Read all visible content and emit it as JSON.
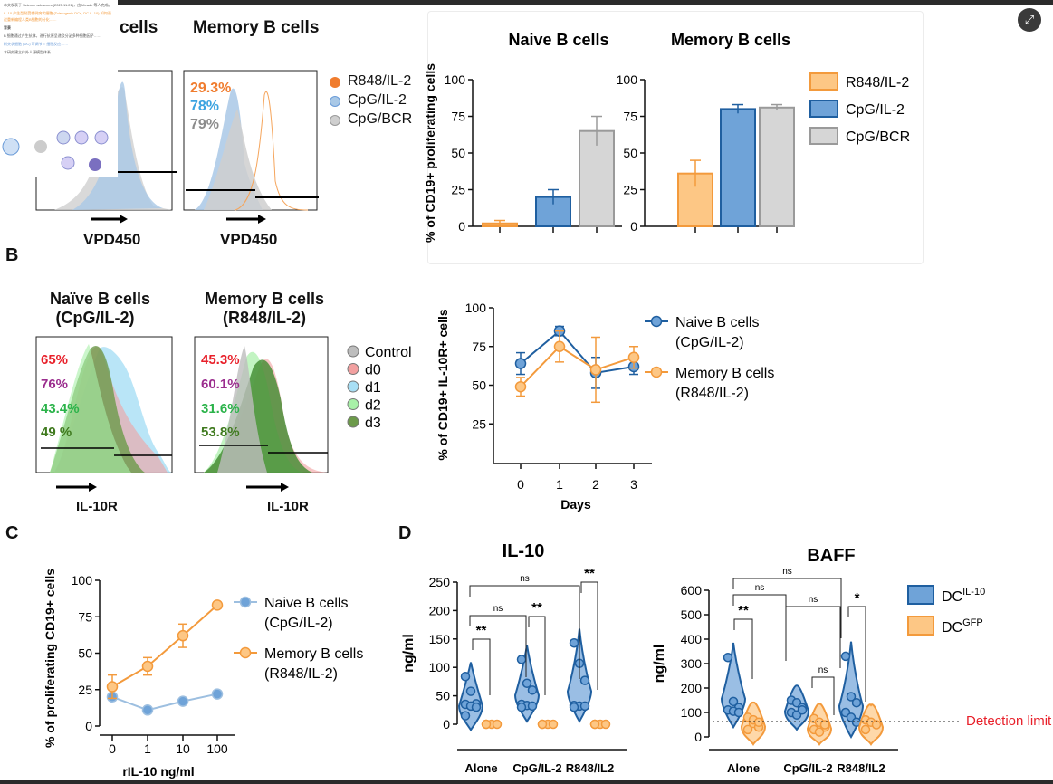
{
  "overlay": {
    "lines": [
      "本文发表于 Science advances (2025.11.21)，由 Meade 等人完成。",
      "IL-10 产生型耐受性树突状细胞 (Tolerogenic DCs, DC IL-10) 如何通过重新编程人类B细胞的分化……",
      "背景",
      "B 细胞通过产生抗体，进行抗原呈递及分泌多种细胞因子……",
      "树突状细胞 (DC) 可调节 T 细胞反应……",
      "本研究建立体外人源模型体系……"
    ]
  },
  "ui": {
    "expand_icon": "expand-icon"
  },
  "panelA": {
    "naive_title_partial": "cells",
    "memory_title": "Memory B cells",
    "percents": [
      {
        "text": "29.3%",
        "color": "#f07c2e"
      },
      {
        "text": "78%",
        "color": "#3ba3e0"
      },
      {
        "text": "79%",
        "color": "#8c8c8c"
      }
    ],
    "legend": [
      {
        "label": "R848/IL-2",
        "color": "#f07c2e"
      },
      {
        "label": "CpG/IL-2",
        "color": "#a9c8e6"
      },
      {
        "label": "CpG/BCR",
        "color": "#cfcfcf"
      }
    ],
    "xlabel": "VPD450"
  },
  "panelB": {
    "label": "B",
    "naive_title": [
      "Naïve B cells",
      "(CpG/IL-2)"
    ],
    "memory_title": [
      "Memory B cells",
      "(R848/IL-2)"
    ],
    "naive_percents": [
      {
        "text": "65%",
        "color": "#e8202a"
      },
      {
        "text": "76%",
        "color": "#9b2d8e"
      },
      {
        "text": "43.4%",
        "color": "#2bb34a"
      },
      {
        "text": "49 %",
        "color": "#3f7a1e"
      }
    ],
    "memory_percents": [
      {
        "text": "45.3%",
        "color": "#e8202a"
      },
      {
        "text": "60.1%",
        "color": "#9b2d8e"
      },
      {
        "text": "31.6%",
        "color": "#2bb34a"
      },
      {
        "text": "53.8%",
        "color": "#3f7a1e"
      }
    ],
    "legend": [
      {
        "label": "Control",
        "color": "#bdbdbd"
      },
      {
        "label": "d0",
        "color": "#f2a0a0"
      },
      {
        "label": "d1",
        "color": "#a8dff5"
      },
      {
        "label": "d2",
        "color": "#a8f0a8"
      },
      {
        "label": "d3",
        "color": "#6c9a4a"
      }
    ],
    "xlabel": "IL-10R"
  },
  "panelC": {
    "label": "C"
  },
  "panelD": {
    "label": "D",
    "detection_limit": "Detection limit"
  },
  "chart_data": [
    {
      "id": "naive-prolif",
      "type": "bar",
      "title": "Naive B cells",
      "ylabel": "% of CD19+ proliferating cells",
      "ylim": [
        0,
        100
      ],
      "yticks": [
        "0",
        "25",
        "50",
        "75",
        "100"
      ],
      "categories": [
        "R848/IL-2",
        "CpG/IL-2",
        "CpG/BCR"
      ],
      "values": [
        2,
        20,
        65
      ],
      "errors": [
        2,
        5,
        10
      ]
    },
    {
      "id": "memory-prolif",
      "type": "bar",
      "title": "Memory B cells",
      "ylim": [
        0,
        100
      ],
      "yticks": [
        "0",
        "25",
        "50",
        "75",
        "100"
      ],
      "categories": [
        "R848/IL-2",
        "CpG/IL-2",
        "CpG/BCR"
      ],
      "values": [
        36,
        80,
        81
      ],
      "errors": [
        9,
        3,
        2
      ],
      "legend": [
        "R848/IL-2",
        "CpG/IL-2",
        "CpG/BCR"
      ]
    },
    {
      "id": "il10r-days",
      "type": "line",
      "ylabel": "% of CD19+ IL-10R+ cells",
      "xlabel": "Days",
      "x": [
        0,
        1,
        2,
        3
      ],
      "xticks": [
        "0",
        "1",
        "2",
        "3"
      ],
      "yticks": [
        "25",
        "50",
        "75",
        "100"
      ],
      "ylim": [
        0,
        100
      ],
      "series": [
        {
          "name": "Naive B cells (CpG/IL-2)",
          "label": [
            "Naive B cells",
            "(CpG/IL-2)"
          ],
          "values": [
            64,
            85,
            58,
            62
          ],
          "errors": [
            7,
            3,
            10,
            5
          ],
          "color": "#1f5fa0",
          "fill": "#6fa3d8"
        },
        {
          "name": "Memory B cells (R848/IL-2)",
          "label": [
            "Memory B cells",
            "(R848/IL-2)"
          ],
          "values": [
            49,
            75,
            60,
            68
          ],
          "errors": [
            6,
            10,
            21,
            7
          ],
          "color": "#f39a3c",
          "fill": "#fdc785"
        }
      ]
    },
    {
      "id": "il10-dose",
      "type": "line",
      "ylabel": "% of proliferating CD19+ cells",
      "xlabel": "rIL-10 ng/ml",
      "x": [
        "0",
        "1",
        "10",
        "100"
      ],
      "xticks": [
        "0",
        "1",
        "10",
        "100"
      ],
      "yticks": [
        "0",
        "25",
        "50",
        "75",
        "100"
      ],
      "ylim": [
        0,
        100
      ],
      "series": [
        {
          "name": "Naive B cells (CpG/IL-2)",
          "label": [
            "Naive B cells",
            "(CpG/IL-2)"
          ],
          "values": [
            20,
            11,
            17,
            22
          ],
          "errors": [
            1,
            1,
            1,
            1
          ],
          "color": "#9dbfe0",
          "fill": "#6fa3d8"
        },
        {
          "name": "Memory B cells (R848/IL-2)",
          "label": [
            "Memory B cells",
            "(R848/IL-2)"
          ],
          "values": [
            27,
            41,
            62,
            83
          ],
          "errors": [
            8,
            6,
            8,
            2
          ],
          "color": "#f39a3c",
          "fill": "#fdc785"
        }
      ]
    },
    {
      "id": "il10-violin",
      "type": "violin",
      "title": "IL-10",
      "ylabel": "ng/ml",
      "ylim": [
        0,
        250
      ],
      "yticks": [
        "0",
        "50",
        "100",
        "150",
        "200",
        "250"
      ],
      "categories": [
        "Alone",
        "CpG/IL-2",
        "R848/IL2"
      ],
      "series": [
        {
          "name": "DCIL-10",
          "points": [
            [
              84,
              58,
              36,
              35,
              32,
              30,
              15
            ],
            [
              114,
              72,
              60,
              35,
              33,
              32,
              30
            ],
            [
              143,
              107,
              77,
              33,
              32,
              32,
              30
            ]
          ]
        },
        {
          "name": "DCGFP",
          "points": [
            [
              0,
              0,
              0,
              0
            ],
            [
              0,
              0,
              0,
              0
            ],
            [
              0,
              0,
              0,
              0
            ]
          ]
        }
      ],
      "significance": [
        {
          "label": "**"
        },
        {
          "label": "ns"
        },
        {
          "label": "**"
        },
        {
          "label": "ns"
        },
        {
          "label": "**"
        }
      ]
    },
    {
      "id": "baff-violin",
      "type": "violin",
      "title": "BAFF",
      "ylabel": "ng/ml",
      "ylim": [
        0,
        600
      ],
      "yticks": [
        "0",
        "100",
        "200",
        "300",
        "400",
        "500",
        "600"
      ],
      "categories": [
        "Alone",
        "CpG/IL-2",
        "R848/IL2"
      ],
      "detection_limit": 62,
      "series": [
        {
          "name": "DCIL-10",
          "points": [
            [
              325,
              145,
              120,
              110,
              105,
              100
            ],
            [
              150,
              140,
              120,
              100,
              90,
              110
            ],
            [
              330,
              165,
              140,
              100,
              80,
              60
            ]
          ]
        },
        {
          "name": "DCGFP",
          "points": [
            [
              80,
              55,
              40,
              30,
              70,
              60
            ],
            [
              75,
              60,
              40,
              30,
              20,
              50
            ],
            [
              70,
              60,
              50,
              30
            ]
          ]
        }
      ],
      "significance": [
        {
          "label": "**"
        },
        {
          "label": "ns"
        },
        {
          "label": "ns"
        },
        {
          "label": "ns"
        },
        {
          "label": "ns"
        },
        {
          "label": "*"
        }
      ],
      "legend": [
        {
          "base": "DC",
          "sup": "IL-10",
          "color": "#6fa3d8",
          "stroke": "#1f5fa0"
        },
        {
          "base": "DC",
          "sup": "GFP",
          "color": "#fdc785",
          "stroke": "#f39a3c"
        }
      ]
    }
  ]
}
